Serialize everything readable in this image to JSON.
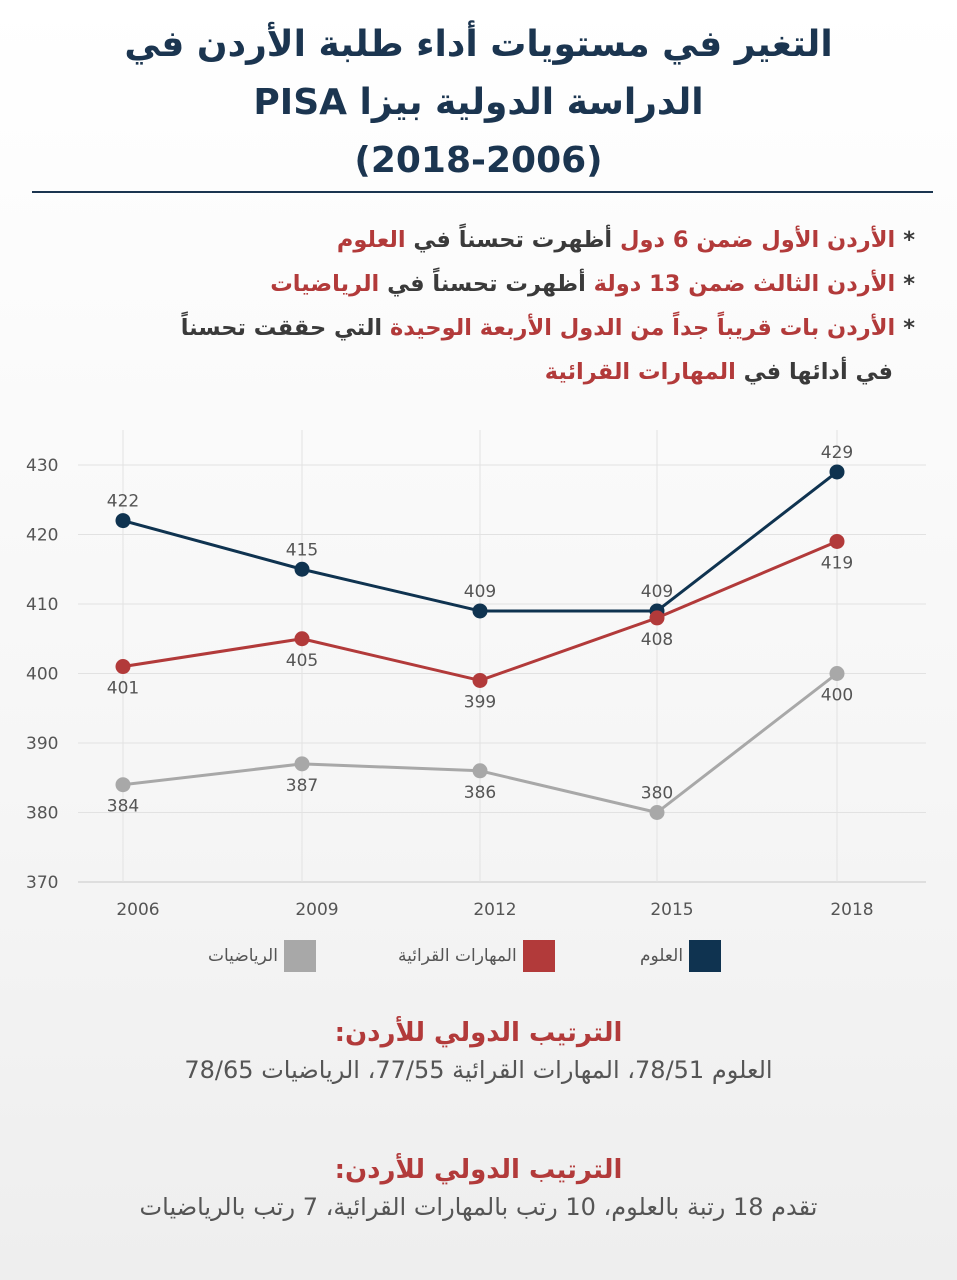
{
  "title": {
    "line1": "التغير في مستويات أداء طلبة الأردن في",
    "line2": "الدراسة الدولية بيزا PISA",
    "line3": "(2018-2006)"
  },
  "bullets": {
    "b1": {
      "star": "*",
      "p1": "الأردن الأول ضمن 6 دول",
      "p2": " أظهرت تحسناً في ",
      "p3": "العلوم"
    },
    "b2": {
      "star": "*",
      "p1": "الأردن الثالث ضمن 13 دولة",
      "p2": " أظهرت تحسناً في ",
      "p3": "الرياضيات"
    },
    "b3": {
      "star": "*",
      "p1": "الأردن بات قريباً جداً من الدول الأربعة الوحيدة",
      "p2": " التي حققت تحسناً",
      "p3": "في أدائها في ",
      "p4": "المهارات القرائية"
    }
  },
  "colors": {
    "science": "#0f3350",
    "reading": "#b23a3a",
    "math": "#a8a8a8"
  },
  "chart_data": {
    "type": "line",
    "x": [
      "2006",
      "2009",
      "2012",
      "2015",
      "2018"
    ],
    "ylim": [
      370,
      430
    ],
    "yticks": [
      "370",
      "380",
      "390",
      "400",
      "410",
      "420",
      "430"
    ],
    "grid": true,
    "legend_position": "bottom",
    "series": [
      {
        "name": "العلوم",
        "key": "science",
        "values": [
          422,
          415,
          409,
          409,
          429
        ],
        "labels": [
          "422",
          "415",
          "409",
          "409",
          "429"
        ]
      },
      {
        "name": "المهارات القرائية",
        "key": "reading",
        "values": [
          401,
          405,
          399,
          408,
          419
        ],
        "labels": [
          "401",
          "405",
          "399",
          "408",
          "419"
        ]
      },
      {
        "name": "الرياضيات",
        "key": "math",
        "values": [
          384,
          387,
          386,
          380,
          400
        ],
        "labels": [
          "384",
          "387",
          "386",
          "380",
          "400"
        ]
      }
    ]
  },
  "legend": {
    "science": "العلوم",
    "reading": "المهارات القرائية",
    "math": "الرياضيات"
  },
  "rank1": {
    "title": "الترتيب الدولي للأردن:",
    "text": "العلوم 78/51، المهارات القرائية 77/55،  الرياضيات 78/65"
  },
  "rank2": {
    "title": "الترتيب الدولي للأردن:",
    "text": "تقدم 18 رتبة بالعلوم، 10 رتب بالمهارات القرائية، 7 رتب بالرياضيات"
  }
}
